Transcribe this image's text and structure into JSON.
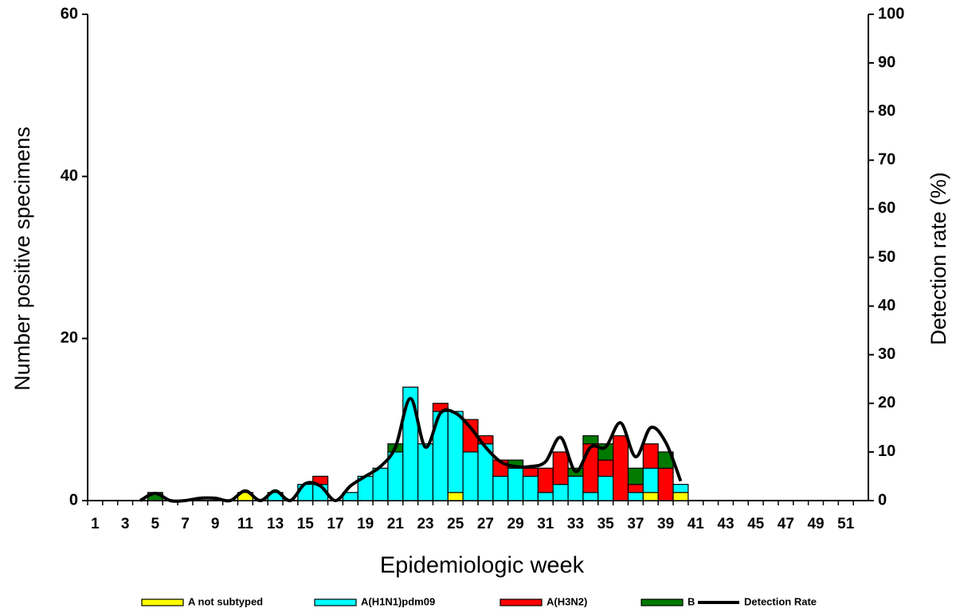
{
  "chart_data": {
    "type": "bar",
    "stacked": true,
    "x_label": "Epidemiologic week",
    "y_label": "Number positive specimens",
    "y2_label": "Detection rate (%)",
    "categories": [
      "1",
      null,
      "3",
      null,
      "5",
      null,
      "7",
      null,
      "9",
      null,
      "11",
      null,
      "13",
      null,
      "15",
      null,
      "17",
      null,
      "19",
      null,
      "21",
      null,
      "23",
      null,
      "25",
      null,
      "27",
      null,
      "29",
      null,
      "31",
      null,
      "33",
      null,
      "35",
      null,
      "37",
      null,
      "39",
      null,
      "41",
      null,
      "43",
      null,
      "45",
      null,
      "47",
      null,
      "49",
      null,
      "51",
      null
    ],
    "ylim": [
      0,
      60
    ],
    "yticks": [
      0,
      20,
      40,
      60
    ],
    "y2lim": [
      0,
      100
    ],
    "y2ticks": [
      0,
      10,
      20,
      30,
      40,
      50,
      60,
      70,
      80,
      90,
      100
    ],
    "legend": "bottom",
    "series": [
      {
        "name": "A not subtyped",
        "color": "#ffff00",
        "values": [
          0,
          0,
          0,
          0,
          0,
          0,
          0,
          0,
          0,
          0,
          1,
          0,
          0,
          0,
          0,
          0,
          0,
          0,
          0,
          0,
          0,
          0,
          0,
          0,
          1,
          0,
          0,
          0,
          0,
          0,
          0,
          0,
          0,
          0,
          0,
          0,
          0,
          1,
          0,
          1,
          0,
          0,
          0,
          0,
          0,
          0,
          0,
          0,
          0,
          0,
          0,
          0
        ]
      },
      {
        "name": "A(H1N1)pdm09",
        "color": "#00ffff",
        "values": [
          0,
          0,
          0,
          0,
          0,
          0,
          0,
          0,
          0,
          0,
          0,
          0,
          1,
          0,
          2,
          2,
          0,
          1,
          3,
          4,
          6,
          14,
          7,
          11,
          10,
          6,
          7,
          3,
          4,
          3,
          1,
          2,
          3,
          1,
          3,
          0,
          1,
          3,
          0,
          1,
          0,
          0,
          0,
          0,
          0,
          0,
          0,
          0,
          0,
          0,
          0,
          0
        ]
      },
      {
        "name": "A(H3N2)",
        "color": "#ff0000",
        "values": [
          0,
          0,
          0,
          0,
          0,
          0,
          0,
          0,
          0,
          0,
          0,
          0,
          0,
          0,
          0,
          1,
          0,
          0,
          0,
          0,
          0,
          0,
          0,
          1,
          0,
          4,
          1,
          2,
          0,
          1,
          3,
          4,
          0,
          6,
          2,
          8,
          1,
          3,
          4,
          0,
          0,
          0,
          0,
          0,
          0,
          0,
          0,
          0,
          0,
          0,
          0,
          0
        ]
      },
      {
        "name": "B",
        "color": "#007a00",
        "values": [
          0,
          0,
          0,
          0,
          1,
          0,
          0,
          0,
          0,
          0,
          0,
          0,
          0,
          0,
          0,
          0,
          0,
          0,
          0,
          0,
          1,
          0,
          0,
          0,
          0,
          0,
          0,
          0,
          1,
          0,
          0,
          0,
          1,
          1,
          2,
          0,
          2,
          0,
          2,
          0,
          0,
          0,
          0,
          0,
          0,
          0,
          0,
          0,
          0,
          0,
          0,
          0
        ]
      },
      {
        "name": "Detection Rate",
        "type": "line",
        "axis": "y2",
        "color": "#000000",
        "values": [
          null,
          null,
          null,
          0,
          1.5,
          0,
          0,
          0.5,
          0.5,
          0,
          2,
          0,
          2,
          0,
          3.5,
          3,
          0,
          3,
          5,
          7,
          11,
          21,
          11,
          18,
          18,
          15,
          11,
          8,
          7,
          7,
          8,
          13,
          6,
          11,
          11,
          16,
          9,
          15,
          12,
          4,
          null,
          null,
          null,
          null,
          null,
          null,
          null,
          null,
          null,
          null,
          null,
          null
        ]
      }
    ]
  }
}
